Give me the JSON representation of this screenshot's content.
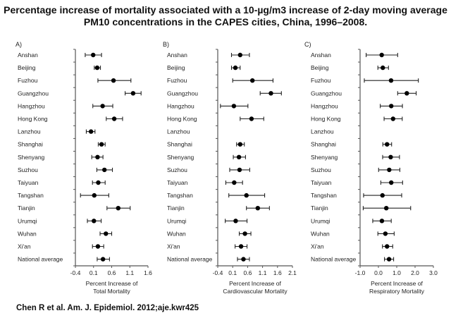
{
  "title_line1": "Percentage increase of mortality associated with a 10-µg/m3 increase of 2-day moving average",
  "title_line2": "PM10 concentrations in the CAPES cities, China, 1996–2008.",
  "citation": "Chen R et al. Am. J. Epidemiol. 2012;aje.kwr425",
  "chart_data": [
    {
      "type": "forest",
      "panel_label": "A)",
      "xlabel_line1": "Percent Increase of",
      "xlabel_line2": "Total Mortality",
      "xlim": [
        -0.4,
        1.6
      ],
      "xticks": [
        "-0.4",
        "0.1",
        "0.6",
        "1.1",
        "1.6"
      ],
      "xtick_values": [
        -0.4,
        0.1,
        0.6,
        1.1,
        1.6
      ],
      "rows": [
        {
          "label": "Anshan",
          "estimate": 0.09,
          "lower": -0.13,
          "upper": 0.32
        },
        {
          "label": "Beijing",
          "estimate": 0.2,
          "lower": 0.12,
          "upper": 0.29
        },
        {
          "label": "Fuzhou",
          "estimate": 0.65,
          "lower": 0.22,
          "upper": 1.13
        },
        {
          "label": "Guangzhou",
          "estimate": 1.19,
          "lower": 0.97,
          "upper": 1.41
        },
        {
          "label": "Hangzhou",
          "estimate": 0.35,
          "lower": 0.08,
          "upper": 0.63
        },
        {
          "label": "Hong Kong",
          "estimate": 0.67,
          "lower": 0.45,
          "upper": 0.9
        },
        {
          "label": "Lanzhou",
          "estimate": 0.03,
          "lower": -0.1,
          "upper": 0.14
        },
        {
          "label": "Shanghai",
          "estimate": 0.32,
          "lower": 0.23,
          "upper": 0.42
        },
        {
          "label": "Shenyang",
          "estimate": 0.21,
          "lower": 0.05,
          "upper": 0.36
        },
        {
          "label": "Suzhou",
          "estimate": 0.4,
          "lower": 0.19,
          "upper": 0.62
        },
        {
          "label": "Taiyuan",
          "estimate": 0.23,
          "lower": 0.07,
          "upper": 0.42
        },
        {
          "label": "Tangshan",
          "estimate": 0.12,
          "lower": -0.26,
          "upper": 0.52
        },
        {
          "label": "Tianjin",
          "estimate": 0.78,
          "lower": 0.47,
          "upper": 1.11
        },
        {
          "label": "Urumqi",
          "estimate": 0.11,
          "lower": -0.07,
          "upper": 0.31
        },
        {
          "label": "Wuhan",
          "estimate": 0.44,
          "lower": 0.28,
          "upper": 0.6
        },
        {
          "label": "Xi'an",
          "estimate": 0.22,
          "lower": 0.07,
          "upper": 0.38
        },
        {
          "label": "National average",
          "estimate": 0.36,
          "lower": 0.2,
          "upper": 0.54
        }
      ]
    },
    {
      "type": "forest",
      "panel_label": "B)",
      "xlabel_line1": "Percent Increase of",
      "xlabel_line2": "Cardiovascular Mortality",
      "xlim": [
        -0.4,
        2.1
      ],
      "xticks": [
        "-0.4",
        "0.1",
        "0.6",
        "1.1",
        "1.6",
        "2.1"
      ],
      "xtick_values": [
        -0.4,
        0.1,
        0.6,
        1.1,
        1.6,
        2.1
      ],
      "rows": [
        {
          "label": "Anshan",
          "estimate": 0.35,
          "lower": 0.06,
          "upper": 0.66
        },
        {
          "label": "Beijing",
          "estimate": 0.19,
          "lower": 0.06,
          "upper": 0.35
        },
        {
          "label": "Fuzhou",
          "estimate": 0.76,
          "lower": 0.1,
          "upper": 1.45
        },
        {
          "label": "Guangzhou",
          "estimate": 1.38,
          "lower": 1.02,
          "upper": 1.73
        },
        {
          "label": "Hangzhou",
          "estimate": 0.14,
          "lower": -0.31,
          "upper": 0.61
        },
        {
          "label": "Hong Kong",
          "estimate": 0.73,
          "lower": 0.35,
          "upper": 1.14
        },
        {
          "label": "Lanzhou",
          "estimate": null,
          "lower": null,
          "upper": null
        },
        {
          "label": "Shanghai",
          "estimate": 0.35,
          "lower": 0.23,
          "upper": 0.49
        },
        {
          "label": "Shenyang",
          "estimate": 0.31,
          "lower": 0.12,
          "upper": 0.53
        },
        {
          "label": "Suzhou",
          "estimate": 0.33,
          "lower": 0.0,
          "upper": 0.67
        },
        {
          "label": "Taiyuan",
          "estimate": 0.15,
          "lower": -0.13,
          "upper": 0.43
        },
        {
          "label": "Tangshan",
          "estimate": 0.56,
          "lower": -0.03,
          "upper": 1.17
        },
        {
          "label": "Tianjin",
          "estimate": 0.94,
          "lower": 0.56,
          "upper": 1.33
        },
        {
          "label": "Urumqi",
          "estimate": 0.2,
          "lower": -0.15,
          "upper": 0.58
        },
        {
          "label": "Wuhan",
          "estimate": 0.51,
          "lower": 0.32,
          "upper": 0.71
        },
        {
          "label": "Xi'an",
          "estimate": 0.38,
          "lower": 0.18,
          "upper": 0.58
        },
        {
          "label": "National average",
          "estimate": 0.46,
          "lower": 0.26,
          "upper": 0.66
        }
      ]
    },
    {
      "type": "forest",
      "panel_label": "C)",
      "xlabel_line1": "Percent Increase of",
      "xlabel_line2": "Respiratory Mortality",
      "xlim": [
        -1.0,
        3.0
      ],
      "xticks": [
        "-1.0",
        "0.0",
        "1.0",
        "2.0",
        "3.0"
      ],
      "xtick_values": [
        -1.0,
        0.0,
        1.0,
        2.0,
        3.0
      ],
      "rows": [
        {
          "label": "Anshan",
          "estimate": 0.18,
          "lower": -0.67,
          "upper": 1.05
        },
        {
          "label": "Beijing",
          "estimate": 0.24,
          "lower": -0.03,
          "upper": 0.55
        },
        {
          "label": "Fuzhou",
          "estimate": 0.69,
          "lower": -0.77,
          "upper": 2.18
        },
        {
          "label": "Guangzhou",
          "estimate": 1.55,
          "lower": 1.05,
          "upper": 2.06
        },
        {
          "label": "Hangzhou",
          "estimate": 0.7,
          "lower": 0.1,
          "upper": 1.31
        },
        {
          "label": "Hong Kong",
          "estimate": 0.8,
          "lower": 0.31,
          "upper": 1.3
        },
        {
          "label": "Lanzhou",
          "estimate": null,
          "lower": null,
          "upper": null
        },
        {
          "label": "Shanghai",
          "estimate": 0.47,
          "lower": 0.24,
          "upper": 0.72
        },
        {
          "label": "Shenyang",
          "estimate": 0.67,
          "lower": 0.23,
          "upper": 1.15
        },
        {
          "label": "Suzhou",
          "estimate": 0.59,
          "lower": 0.01,
          "upper": 1.17
        },
        {
          "label": "Taiyuan",
          "estimate": 0.7,
          "lower": 0.13,
          "upper": 1.32
        },
        {
          "label": "Tangshan",
          "estimate": 0.22,
          "lower": -0.81,
          "upper": 1.27
        },
        {
          "label": "Tianjin",
          "estimate": 0.43,
          "lower": -0.83,
          "upper": 1.76
        },
        {
          "label": "Urumqi",
          "estimate": 0.19,
          "lower": -0.31,
          "upper": 0.7
        },
        {
          "label": "Wuhan",
          "estimate": 0.38,
          "lower": -0.03,
          "upper": 0.86
        },
        {
          "label": "Xi'an",
          "estimate": 0.47,
          "lower": 0.22,
          "upper": 0.78
        },
        {
          "label": "National average",
          "estimate": 0.58,
          "lower": 0.33,
          "upper": 0.83
        }
      ]
    }
  ]
}
